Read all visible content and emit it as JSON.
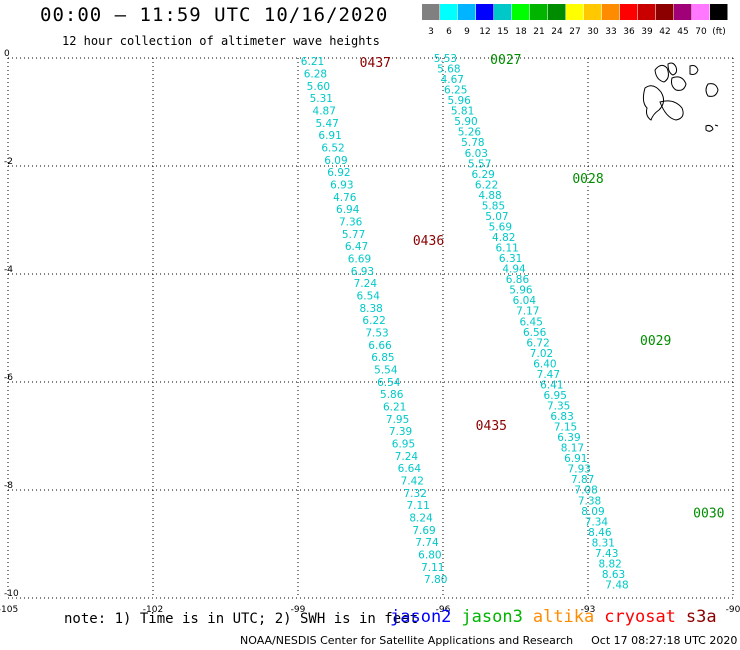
{
  "header": {
    "title": "00:00 – 11:59 UTC 10/16/2020",
    "subtitle": "12 hour collection of altimeter wave heights"
  },
  "colorbar": {
    "colors": [
      "#808080",
      "#00ffff",
      "#00b4ff",
      "#0000ff",
      "#00c8c8",
      "#00ff00",
      "#00b400",
      "#008c00",
      "#ffff00",
      "#ffc800",
      "#ff8c00",
      "#ff0000",
      "#c80000",
      "#8c0000",
      "#a00078",
      "#ff78ff",
      "#000000"
    ],
    "labels": [
      "3",
      "6",
      "9",
      "12",
      "15",
      "18",
      "21",
      "24",
      "27",
      "30",
      "33",
      "36",
      "39",
      "42",
      "45",
      "70",
      "(ft)"
    ]
  },
  "axes": {
    "x_ticks": [
      -105,
      -102,
      -99,
      -96,
      -93,
      -90
    ],
    "x_tick_labels": [
      "-105",
      "-102",
      "-99",
      "-96",
      "-93",
      "-90"
    ],
    "y_ticks": [
      0,
      -2,
      -4,
      -6,
      -8,
      -10
    ],
    "y_tick_labels": [
      "0",
      "-2",
      "-4",
      "-6",
      "-8",
      "-10"
    ],
    "xlim": [
      -105,
      -90
    ],
    "ylim": [
      -10,
      0
    ],
    "grid": true
  },
  "tracks": [
    {
      "color": "#00c8c8",
      "values": [
        "6.21",
        "6.28",
        "5.60",
        "5.31",
        "4.87",
        "5.47",
        "6.91",
        "6.52",
        "6.09",
        "6.92",
        "6.93",
        "4.76",
        "6.94",
        "7.36",
        "5.77",
        "6.47",
        "6.69",
        "6.93",
        "7.24",
        "6.54",
        "8.38",
        "6.22",
        "7.53",
        "6.66",
        "6.85",
        "5.54",
        "6.54",
        "5.86",
        "6.21",
        "7.95",
        "7.39",
        "6.95",
        "7.24",
        "6.64",
        "7.42",
        "7.32",
        "7.11",
        "8.24",
        "7.69",
        "7.74",
        "6.80",
        "7.11",
        "7.80"
      ],
      "lon_start": -98.7,
      "lon_end": -96.15,
      "lat_start": -0.06,
      "lat_end": -9.65,
      "time_labels": [
        {
          "text": "0437",
          "lon": -97.4,
          "lat": -0.06
        },
        {
          "text": "0436",
          "lon": -96.3,
          "lat": -3.35
        },
        {
          "text": "0435",
          "lon": -95.0,
          "lat": -6.78
        }
      ],
      "time_color": "#8c0000"
    },
    {
      "color": "#00c8c8",
      "values": [
        "5.53",
        "5.68",
        "4.67",
        "6.25",
        "5.96",
        "5.81",
        "5.90",
        "5.26",
        "5.78",
        "6.03",
        "5.57",
        "6.29",
        "6.22",
        "4.88",
        "5.85",
        "5.07",
        "5.69",
        "4.82",
        "6.11",
        "6.31",
        "4.94",
        "6.86",
        "5.96",
        "6.04",
        "7.17",
        "6.45",
        "6.56",
        "6.72",
        "7.02",
        "6.40",
        "7.47",
        "6.41",
        "6.95",
        "7.35",
        "6.83",
        "7.15",
        "6.39",
        "8.17",
        "6.91",
        "7.93",
        "7.87",
        "7.08",
        "7.38",
        "8.09",
        "7.34",
        "8.46",
        "8.31",
        "7.43",
        "8.82",
        "8.63",
        "7.48"
      ],
      "lon_start": -95.95,
      "lon_end": -92.4,
      "lat_start": 0.0,
      "lat_end": -9.75,
      "time_labels": [
        {
          "text": "0027",
          "lon": -94.7,
          "lat": 0.0
        },
        {
          "text": "0028",
          "lon": -93.0,
          "lat": -2.2
        },
        {
          "text": "0029",
          "lon": -91.6,
          "lat": -5.2
        },
        {
          "text": "0030",
          "lon": -90.5,
          "lat": -8.4
        }
      ],
      "time_color": "#008c00"
    }
  ],
  "note": "note:  1) Time is in UTC;  2) SWH is in feet",
  "legend": [
    {
      "label": "jason2",
      "color": "#0000ff"
    },
    {
      "label": "jason3",
      "color": "#00b400"
    },
    {
      "label": "altika",
      "color": "#ff8c00"
    },
    {
      "label": "cryosat",
      "color": "#ff0000"
    },
    {
      "label": "s3a",
      "color": "#8c0000"
    }
  ],
  "footer": {
    "credit": "NOAA/NESDIS Center for Satellite Applications and Research",
    "timestamp": "Oct 17 08:27:18 UTC 2020"
  }
}
